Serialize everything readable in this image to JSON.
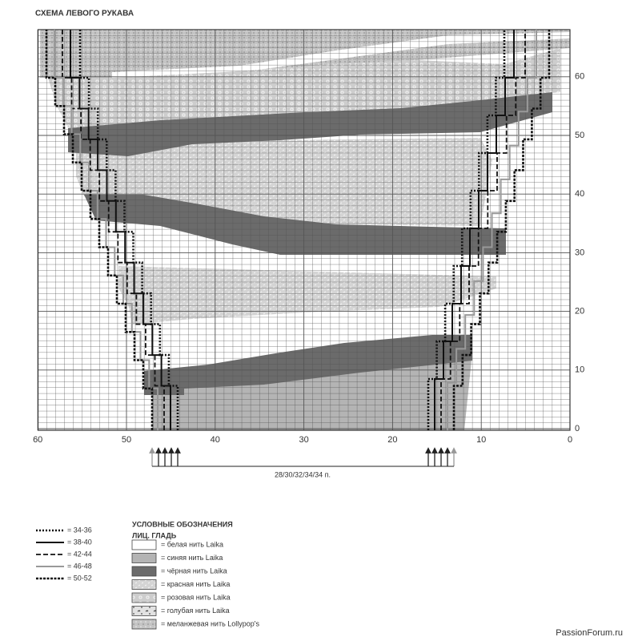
{
  "title": "СХЕМА ЛЕВОГО РУКАВА",
  "x_axis": {
    "labels": [
      60,
      50,
      40,
      30,
      20,
      10,
      0
    ]
  },
  "y_axis": {
    "labels": [
      0,
      10,
      20,
      30,
      40,
      50,
      60
    ]
  },
  "cast_on": "28/30/32/34/34 п.",
  "sizes": [
    "= 34-36",
    "= 38-40",
    "= 42-44",
    "= 46-48",
    "= 50-52"
  ],
  "legend": {
    "title": "УСЛОВНЫЕ ОБОЗНАЧЕНИЯ",
    "subtitle": "ЛИЦ. ГЛАДЬ",
    "items": [
      "= белая нить Laika",
      "= синяя нить Laika",
      "= чёрная нить Laika",
      "= красная нить Laika",
      "= розовая нить Laika",
      "= голубая нить Laika",
      "= меланжевая нить Lollypop's"
    ]
  },
  "watermark": "PassionForum.ru"
}
